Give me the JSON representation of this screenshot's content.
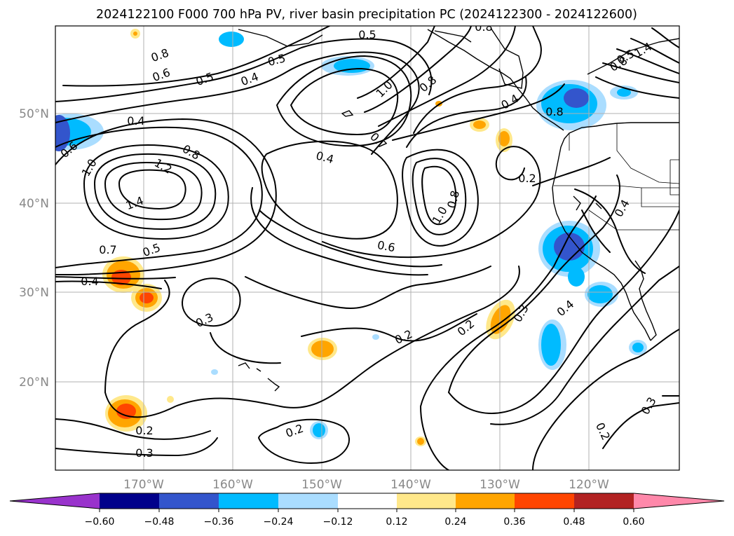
{
  "title": "2024122100 F000 700 hPa PV, river basin precipitation PC (2024122300 - 2024122600)",
  "lat_labels": [
    "50°N",
    "40°N",
    "30°N",
    "20°N"
  ],
  "lon_labels": [
    "170°W",
    "160°W",
    "150°W",
    "140°W",
    "130°W",
    "120°W"
  ],
  "colorbar": {
    "ticks": [
      "−0.60",
      "−0.48",
      "−0.36",
      "−0.24",
      "−0.12",
      "0.12",
      "0.24",
      "0.36",
      "0.48",
      "0.60"
    ],
    "colors": [
      "#9933cc",
      "#00008b",
      "#3355cc",
      "#00bbff",
      "#aaddff",
      "#ffffff",
      "#ffe88a",
      "#ffa500",
      "#ff4500",
      "#b22222",
      "#ff88aa"
    ]
  },
  "contour_labels": [
    {
      "text": "0.8",
      "angle": -20
    },
    {
      "text": "0.6",
      "angle": -20
    },
    {
      "text": "0.5",
      "angle": -20
    },
    {
      "text": "0.4",
      "angle": -20
    },
    {
      "text": "0.5",
      "angle": -15
    },
    {
      "text": "0.5",
      "angle": 0
    },
    {
      "text": "0.8",
      "angle": 0
    },
    {
      "text": "1.0",
      "angle": -45
    },
    {
      "text": "0.8",
      "angle": -40
    },
    {
      "text": "0.4",
      "angle": 0
    },
    {
      "text": "0.6",
      "angle": -40
    },
    {
      "text": "0.8",
      "angle": 30
    },
    {
      "text": "1.0",
      "angle": -60
    },
    {
      "text": "1.2",
      "angle": 30
    },
    {
      "text": "1.4",
      "angle": -20
    },
    {
      "text": "0.4",
      "angle": 15
    },
    {
      "text": "0.7",
      "angle": 45
    },
    {
      "text": "0.2",
      "angle": 0
    },
    {
      "text": "0.8",
      "angle": -75
    },
    {
      "text": "1.0",
      "angle": -60
    },
    {
      "text": "0.6",
      "angle": 10
    },
    {
      "text": "0.7",
      "angle": 0
    },
    {
      "text": "0.5",
      "angle": -20
    },
    {
      "text": "0.4",
      "angle": 0
    },
    {
      "text": "0.3",
      "angle": -25
    },
    {
      "text": "0.2",
      "angle": -25
    },
    {
      "text": "0.2",
      "angle": -40
    },
    {
      "text": "0.3",
      "angle": -60
    },
    {
      "text": "0.4",
      "angle": -40
    },
    {
      "text": "0.4",
      "angle": -60
    },
    {
      "text": "0.2",
      "angle": -20
    },
    {
      "text": "0.2",
      "angle": 0
    },
    {
      "text": "0.3",
      "angle": 0
    },
    {
      "text": "0.3",
      "angle": -60
    },
    {
      "text": "0.2",
      "angle": 65
    },
    {
      "text": "0.8",
      "angle": 0
    },
    {
      "text": "1.4",
      "angle": -30
    },
    {
      "text": "0.5",
      "angle": -30
    },
    {
      "text": "0.8",
      "angle": -30
    },
    {
      "text": "0.4",
      "angle": -30
    }
  ]
}
